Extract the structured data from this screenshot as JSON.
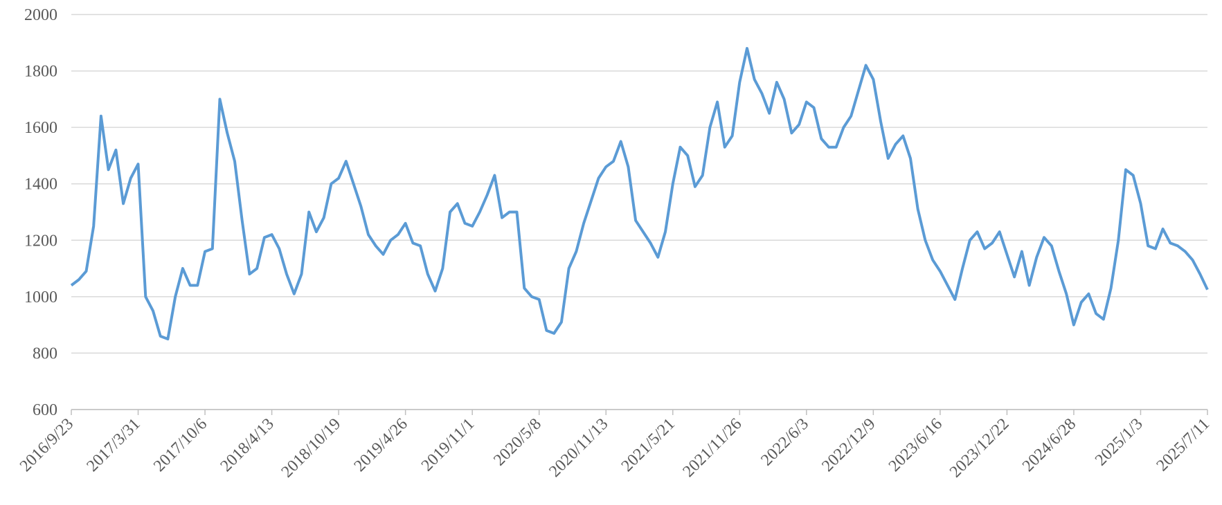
{
  "chart_data": {
    "type": "line",
    "categories": [
      "2016/9/23",
      null,
      null,
      null,
      null,
      null,
      null,
      null,
      null,
      "2017/3/31",
      null,
      null,
      null,
      null,
      null,
      null,
      null,
      null,
      "2017/10/6",
      null,
      null,
      null,
      null,
      null,
      null,
      null,
      null,
      "2018/4/13",
      null,
      null,
      null,
      null,
      null,
      null,
      null,
      null,
      "2018/10/19",
      null,
      null,
      null,
      null,
      null,
      null,
      null,
      null,
      "2019/4/26",
      null,
      null,
      null,
      null,
      null,
      null,
      null,
      null,
      "2019/11/1",
      null,
      null,
      null,
      null,
      null,
      null,
      null,
      null,
      "2020/5/8",
      null,
      null,
      null,
      null,
      null,
      null,
      null,
      null,
      "2020/11/13",
      null,
      null,
      null,
      null,
      null,
      null,
      null,
      null,
      "2021/5/21",
      null,
      null,
      null,
      null,
      null,
      null,
      null,
      null,
      "2021/11/26",
      null,
      null,
      null,
      null,
      null,
      null,
      null,
      null,
      "2022/6/3",
      null,
      null,
      null,
      null,
      null,
      null,
      null,
      null,
      "2022/12/9",
      null,
      null,
      null,
      null,
      null,
      null,
      null,
      null,
      "2023/6/16",
      null,
      null,
      null,
      null,
      null,
      null,
      null,
      null,
      "2023/12/22",
      null,
      null,
      null,
      null,
      null,
      null,
      null,
      null,
      "2024/6/28",
      null,
      null,
      null,
      null,
      null,
      null,
      null,
      null,
      "2025/1/3",
      null,
      null,
      null,
      null,
      null,
      null,
      null,
      null,
      "2025/7/11"
    ],
    "series": [
      {
        "color": "#5b9bd5",
        "values": [
          1040,
          1060,
          1090,
          1250,
          1640,
          1450,
          1520,
          1330,
          1420,
          1470,
          1000,
          950,
          860,
          850,
          1000,
          1100,
          1040,
          1040,
          1160,
          1170,
          1700,
          1580,
          1480,
          1270,
          1080,
          1100,
          1210,
          1220,
          1170,
          1080,
          1010,
          1080,
          1300,
          1230,
          1280,
          1400,
          1420,
          1480,
          1400,
          1320,
          1220,
          1180,
          1150,
          1200,
          1220,
          1260,
          1190,
          1180,
          1080,
          1020,
          1100,
          1300,
          1330,
          1260,
          1250,
          1300,
          1360,
          1430,
          1280,
          1300,
          1300,
          1030,
          1000,
          990,
          880,
          870,
          910,
          1100,
          1160,
          1260,
          1340,
          1420,
          1460,
          1480,
          1550,
          1460,
          1270,
          1230,
          1190,
          1140,
          1230,
          1400,
          1530,
          1500,
          1390,
          1430,
          1600,
          1690,
          1530,
          1570,
          1760,
          1880,
          1770,
          1720,
          1650,
          1760,
          1700,
          1580,
          1610,
          1690,
          1670,
          1560,
          1530,
          1530,
          1600,
          1640,
          1730,
          1820,
          1770,
          1620,
          1490,
          1540,
          1570,
          1490,
          1310,
          1200,
          1130,
          1090,
          1040,
          990,
          1100,
          1200,
          1230,
          1170,
          1190,
          1230,
          1150,
          1070,
          1160,
          1040,
          1140,
          1210,
          1180,
          1090,
          1010,
          900,
          980,
          1010,
          940,
          920,
          1030,
          1200,
          1450,
          1430,
          1330,
          1180,
          1170,
          1240,
          1190,
          1180,
          1160,
          1130,
          1080,
          1025
        ]
      }
    ],
    "ylim": [
      600,
      2000
    ],
    "yticks": [
      600,
      800,
      1000,
      1200,
      1400,
      1600,
      1800,
      2000
    ],
    "grid": true
  }
}
